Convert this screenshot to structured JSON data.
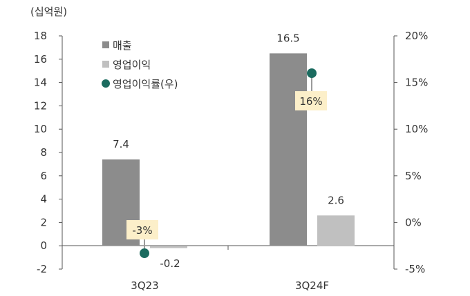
{
  "chart_data": {
    "type": "bar",
    "unit_label": "(십억원)",
    "categories": [
      "3Q23",
      "3Q24F"
    ],
    "series": [
      {
        "name": "매출",
        "type": "bar",
        "axis": "left",
        "color": "#8c8c8c",
        "values": [
          7.4,
          16.5
        ],
        "labels": [
          "7.4",
          "16.5"
        ]
      },
      {
        "name": "영업이익",
        "type": "bar",
        "axis": "left",
        "color": "#c0c0c0",
        "values": [
          -0.2,
          2.6
        ],
        "labels": [
          "-0.2",
          "2.6"
        ]
      },
      {
        "name": "영업이익률(우)",
        "type": "scatter",
        "axis": "right",
        "color": "#1b6b5f",
        "values": [
          -3.3,
          16
        ],
        "labels": [
          "-3%",
          "16%"
        ]
      }
    ],
    "y_left": {
      "min": -2,
      "max": 18,
      "ticks": [
        "-2",
        "0",
        "2",
        "4",
        "6",
        "8",
        "10",
        "12",
        "14",
        "16",
        "18"
      ]
    },
    "y_right": {
      "min": -5,
      "max": 20,
      "ticks": [
        "-5%",
        "0%",
        "5%",
        "10%",
        "15%",
        "20%"
      ]
    },
    "legend_position": "top-left",
    "grid": false
  }
}
